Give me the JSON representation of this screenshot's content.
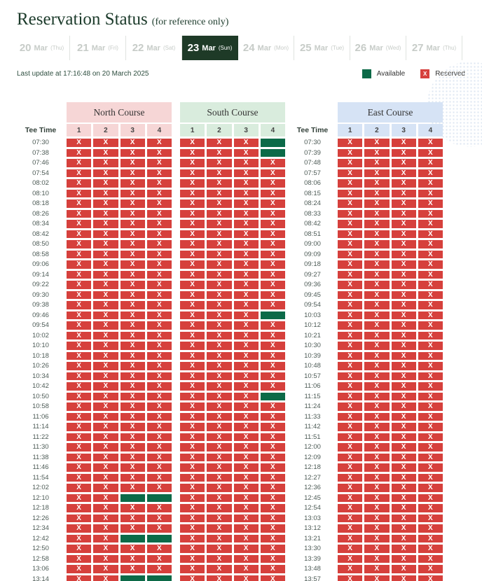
{
  "title": "Reservation Status",
  "title_note": "(for reference only)",
  "dates": [
    {
      "day": "20",
      "month": "Mar",
      "weekday": "(Thu)",
      "selected": false
    },
    {
      "day": "21",
      "month": "Mar",
      "weekday": "(Fri)",
      "selected": false
    },
    {
      "day": "22",
      "month": "Mar",
      "weekday": "(Sat)",
      "selected": false
    },
    {
      "day": "23",
      "month": "Mar",
      "weekday": "(Sun)",
      "selected": true
    },
    {
      "day": "24",
      "month": "Mar",
      "weekday": "(Mon)",
      "selected": false
    },
    {
      "day": "25",
      "month": "Mar",
      "weekday": "(Tue)",
      "selected": false
    },
    {
      "day": "26",
      "month": "Mar",
      "weekday": "(Wed)",
      "selected": false
    },
    {
      "day": "27",
      "month": "Mar",
      "weekday": "(Thu)",
      "selected": false
    }
  ],
  "last_update": "Last update at 17:16:48 on 20 March 2025",
  "legend": {
    "available": "Available",
    "reserved": "Reserved"
  },
  "tee_time_label": "Tee Time",
  "columns": [
    "1",
    "2",
    "3",
    "4"
  ],
  "reserved_mark": "X",
  "colors": {
    "reserved": "#d6403c",
    "available": "#0c6a48",
    "north_header": "#f6d6d6",
    "south_header": "#d9ecdd",
    "east_header": "#d6e3f5",
    "active_tab": "#1e3a27",
    "title_text": "#1c3b2b"
  },
  "courses": [
    {
      "key": "north",
      "name": "North Course",
      "header_color": "#f6d6d6"
    },
    {
      "key": "south",
      "name": "South Course",
      "header_color": "#d9ecdd"
    },
    {
      "key": "east",
      "name": "East Course",
      "header_color": "#d6e3f5"
    }
  ],
  "left_times": [
    "07:30",
    "07:38",
    "07:46",
    "07:54",
    "08:02",
    "08:10",
    "08:18",
    "08:26",
    "08:34",
    "08:42",
    "08:50",
    "08:58",
    "09:06",
    "09:14",
    "09:22",
    "09:30",
    "09:38",
    "09:46",
    "09:54",
    "10:02",
    "10:10",
    "10:18",
    "10:26",
    "10:34",
    "10:42",
    "10:50",
    "10:58",
    "11:06",
    "11:14",
    "11:22",
    "11:30",
    "11:38",
    "11:46",
    "11:54",
    "12:02",
    "12:10",
    "12:18",
    "12:26",
    "12:34",
    "12:42",
    "12:50",
    "12:58",
    "13:06",
    "13:14"
  ],
  "east_times": [
    "07:30",
    "07:39",
    "07:48",
    "07:57",
    "08:06",
    "08:15",
    "08:24",
    "08:33",
    "08:42",
    "08:51",
    "09:00",
    "09:09",
    "09:18",
    "09:27",
    "09:36",
    "09:45",
    "09:54",
    "10:03",
    "10:12",
    "10:21",
    "10:30",
    "10:39",
    "10:48",
    "10:57",
    "11:06",
    "11:15",
    "11:24",
    "11:33",
    "11:42",
    "11:51",
    "12:00",
    "12:09",
    "12:18",
    "12:27",
    "12:36",
    "12:45",
    "12:54",
    "13:03",
    "13:12",
    "13:21",
    "13:30",
    "13:39",
    "13:48",
    "13:57"
  ],
  "grids": {
    "north": [
      "XXXX",
      "XXXX",
      "XXXX",
      "XXXX",
      "XXXX",
      "XXXX",
      "XXXX",
      "XXXX",
      "XXXX",
      "XXXX",
      "XXXX",
      "XXXX",
      "XXXX",
      "XXXX",
      "XXXX",
      "XXXX",
      "XXXX",
      "XXXX",
      "XXXX",
      "XXXX",
      "XXXX",
      "XXXX",
      "XXXX",
      "XXXX",
      "XXXX",
      "XXXX",
      "XXXX",
      "XXXX",
      "XXXX",
      "XXXX",
      "XXXX",
      "XXXX",
      "XXXX",
      "XXXX",
      "XXXX",
      "XX..",
      "XXXX",
      "XXXX",
      "XXXX",
      "XX..",
      "XXXX",
      "XXXX",
      "XXXX",
      "XX.."
    ],
    "south": [
      "XXX.",
      "XXX.",
      "XXXX",
      "XXXX",
      "XXXX",
      "XXXX",
      "XXXX",
      "XXXX",
      "XXXX",
      "XXXX",
      "XXXX",
      "XXXX",
      "XXXX",
      "XXXX",
      "XXXX",
      "XXXX",
      "XXXX",
      "XXX.",
      "XXXX",
      "XXXX",
      "XXXX",
      "XXXX",
      "XXXX",
      "XXXX",
      "XXXX",
      "XXX.",
      "XXXX",
      "XXXX",
      "XXXX",
      "XXXX",
      "XXXX",
      "XXXX",
      "XXXX",
      "XXXX",
      "XXXX",
      "XXXX",
      "XXXX",
      "XXXX",
      "XXXX",
      "XXXX",
      "XXXX",
      "XXXX",
      "XXXX",
      "XXXX"
    ],
    "east": [
      "XXXX",
      "XXXX",
      "XXXX",
      "XXXX",
      "XXXX",
      "XXXX",
      "XXXX",
      "XXXX",
      "XXXX",
      "XXXX",
      "XXXX",
      "XXXX",
      "XXXX",
      "XXXX",
      "XXXX",
      "XXXX",
      "XXXX",
      "XXXX",
      "XXXX",
      "XXXX",
      "XXXX",
      "XXXX",
      "XXXX",
      "XXXX",
      "XXXX",
      "XXXX",
      "XXXX",
      "XXXX",
      "XXXX",
      "XXXX",
      "XXXX",
      "XXXX",
      "XXXX",
      "XXXX",
      "XXXX",
      "XXXX",
      "XXXX",
      "XXXX",
      "XXXX",
      "XXXX",
      "XXXX",
      "XXXX",
      "XXXX",
      "XXXX"
    ]
  },
  "partial_row": {
    "north": "XXXX",
    "south": "XXXX",
    "east": "XXXX"
  }
}
